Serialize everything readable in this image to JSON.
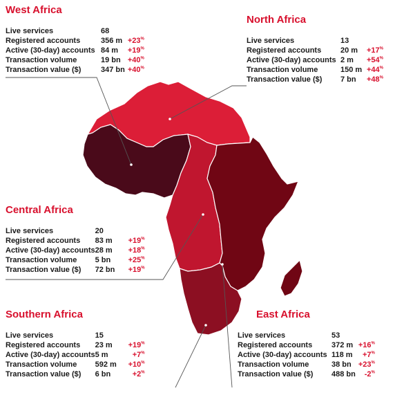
{
  "colors": {
    "accent": "#d8102d",
    "north_africa": "#dc1e37",
    "west_africa": "#4a0a1a",
    "central_africa": "#c0162f",
    "east_africa": "#700614",
    "southern_africa": "#8c0f22"
  },
  "regions": {
    "west": {
      "title": "West Africa",
      "rows": [
        {
          "metric": "Live services",
          "value": "68",
          "change": ""
        },
        {
          "metric": "Registered accounts",
          "value": "356 m",
          "change": "+23"
        },
        {
          "metric": "Active (30-day) accounts",
          "value": "84 m",
          "change": "+19"
        },
        {
          "metric": "Transaction volume",
          "value": "19 bn",
          "change": "+40"
        },
        {
          "metric": "Transaction value ($)",
          "value": "347 bn",
          "change": "+40"
        }
      ]
    },
    "north": {
      "title": "North Africa",
      "rows": [
        {
          "metric": "Live services",
          "value": "13",
          "change": ""
        },
        {
          "metric": "Registered accounts",
          "value": "20 m",
          "change": "+17"
        },
        {
          "metric": "Active (30-day) accounts",
          "value": "2 m",
          "change": "+54"
        },
        {
          "metric": "Transaction volume",
          "value": "150 m",
          "change": "+44"
        },
        {
          "metric": "Transaction value ($)",
          "value": "7 bn",
          "change": "+48"
        }
      ]
    },
    "central": {
      "title": "Central Africa",
      "rows": [
        {
          "metric": "Live services",
          "value": "20",
          "change": ""
        },
        {
          "metric": "Registered accounts",
          "value": "83 m",
          "change": "+19"
        },
        {
          "metric": "Active (30-day) accounts",
          "value": "28 m",
          "change": "+18"
        },
        {
          "metric": "Transaction volume",
          "value": "5 bn",
          "change": "+25"
        },
        {
          "metric": "Transaction value ($)",
          "value": "72 bn",
          "change": "+19"
        }
      ]
    },
    "southern": {
      "title": "Southern Africa",
      "rows": [
        {
          "metric": "Live services",
          "value": "15",
          "change": ""
        },
        {
          "metric": "Registered accounts",
          "value": "23 m",
          "change": "+19"
        },
        {
          "metric": "Active (30-day) accounts",
          "value": "5 m",
          "change": "+7"
        },
        {
          "metric": "Transaction volume",
          "value": "592 m",
          "change": "+10"
        },
        {
          "metric": "Transaction value ($)",
          "value": "6 bn",
          "change": "+2"
        }
      ]
    },
    "east": {
      "title": "East Africa",
      "rows": [
        {
          "metric": "Live services",
          "value": "53",
          "change": ""
        },
        {
          "metric": "Registered accounts",
          "value": "372 m",
          "change": "+16"
        },
        {
          "metric": "Active (30-day) accounts",
          "value": "118 m",
          "change": "+7"
        },
        {
          "metric": "Transaction volume",
          "value": "38 bn",
          "change": "+23"
        },
        {
          "metric": "Transaction value ($)",
          "value": "488 bn",
          "change": "-2"
        }
      ]
    }
  },
  "percent_symbol": "%"
}
